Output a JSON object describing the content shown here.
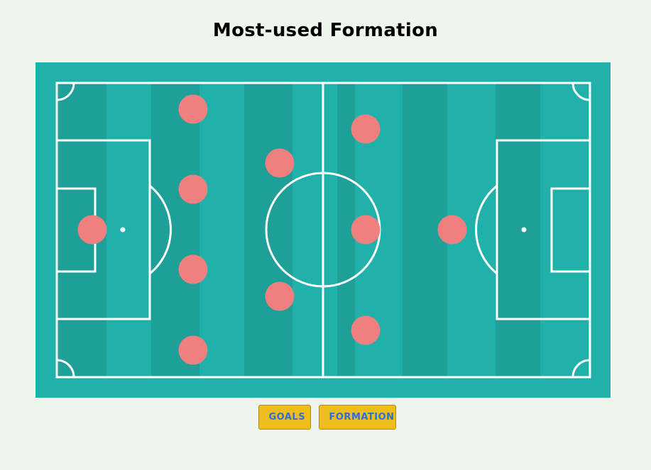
{
  "page": {
    "title": "Most-used Formation"
  },
  "colors": {
    "background": "#edf5ec",
    "pitch": "#20b2aa",
    "pitch_stripe_dark": "#1e9f98",
    "lines": "#ffffff",
    "player": "#f08080",
    "button_bg": "#eebd1e",
    "button_text": "#2d6fd4"
  },
  "buttons": {
    "goals_label": "GOALS",
    "formation_label": "FORMATION"
  },
  "players": [
    {
      "role": "goalkeeper"
    },
    {
      "role": "defender"
    },
    {
      "role": "defender"
    },
    {
      "role": "defender"
    },
    {
      "role": "defender"
    },
    {
      "role": "midfielder"
    },
    {
      "role": "midfielder"
    },
    {
      "role": "midfielder"
    },
    {
      "role": "midfielder"
    },
    {
      "role": "midfielder"
    },
    {
      "role": "forward"
    }
  ]
}
